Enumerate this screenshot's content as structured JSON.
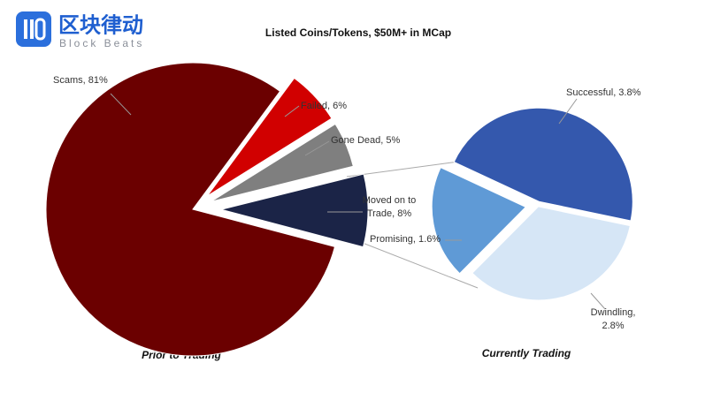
{
  "logo": {
    "text": "区块律动",
    "subtext": "Block Beats"
  },
  "chart_data": [
    {
      "type": "pie",
      "title": "Listed Coins/Tokens, $50M+ in MCap",
      "caption": "Prior to Trading",
      "values": [
        81,
        6,
        5,
        8
      ],
      "value_labels": [
        "Scams, 81%",
        "Failed, 6%",
        "Gone Dead, 5%",
        "Moved on to Trade, 8%"
      ],
      "colors": [
        "#6b0000",
        "#d10000",
        "#7f7f7f",
        "#1b2447"
      ]
    },
    {
      "type": "pie",
      "caption": "Currently Trading",
      "values": [
        3.8,
        2.8,
        1.6
      ],
      "value_labels": [
        "Successful, 3.8%",
        "Dwindling, 2.8%",
        "Promising, 1.6%"
      ],
      "colors": [
        "#3458ad",
        "#d6e6f6",
        "#5f9ad6"
      ]
    }
  ]
}
